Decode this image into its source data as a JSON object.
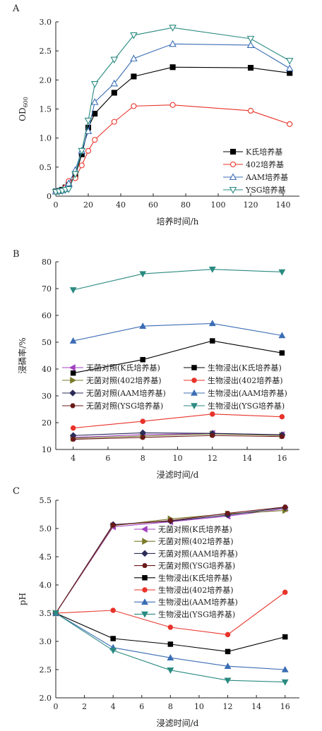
{
  "chart_data": [
    {
      "panel": "A",
      "type": "line",
      "xlabel": "培养时间/h",
      "ylabel": "OD",
      "ylabel_sub": "600",
      "xlim": [
        0,
        150
      ],
      "ylim": [
        0,
        3.0
      ],
      "xticks": [
        0,
        20,
        40,
        60,
        80,
        100,
        120,
        140
      ],
      "yticks": [
        0,
        0.5,
        1.0,
        1.5,
        2.0,
        2.5,
        3.0
      ],
      "ytick_labels": [
        "0",
        "0.5",
        "1.0",
        "1.5",
        "2.0",
        "2.5",
        "3.0"
      ],
      "legend_position": "lower-right",
      "series": [
        {
          "name": "K氏培养基",
          "color": "#000000",
          "marker": "square",
          "fill": true,
          "x": [
            0,
            2,
            4,
            6,
            8,
            12,
            16,
            20,
            24,
            36,
            48,
            72,
            120,
            144
          ],
          "y": [
            0.08,
            0.09,
            0.11,
            0.15,
            0.2,
            0.35,
            0.72,
            1.18,
            1.42,
            1.78,
            2.06,
            2.22,
            2.21,
            2.12
          ]
        },
        {
          "name": "402培养基",
          "color": "#e8332a",
          "marker": "circle",
          "fill": false,
          "x": [
            0,
            2,
            4,
            6,
            8,
            12,
            16,
            20,
            24,
            36,
            48,
            72,
            120,
            144
          ],
          "y": [
            0.07,
            0.08,
            0.1,
            0.15,
            0.26,
            0.31,
            0.53,
            0.78,
            0.97,
            1.28,
            1.55,
            1.57,
            1.47,
            1.24
          ]
        },
        {
          "name": "AAM培养基",
          "color": "#3b6db5",
          "marker": "triangle-up",
          "fill": false,
          "x": [
            0,
            2,
            4,
            6,
            8,
            12,
            16,
            20,
            24,
            36,
            48,
            72,
            120,
            144
          ],
          "y": [
            0.08,
            0.09,
            0.1,
            0.12,
            0.22,
            0.45,
            0.78,
            1.12,
            1.62,
            1.94,
            2.37,
            2.62,
            2.6,
            2.2
          ]
        },
        {
          "name": "YSG培养基",
          "color": "#2a8a80",
          "marker": "triangle-down",
          "fill": false,
          "x": [
            0,
            2,
            4,
            6,
            8,
            12,
            16,
            20,
            24,
            36,
            48,
            72,
            120,
            144
          ],
          "y": [
            0.07,
            0.08,
            0.09,
            0.11,
            0.12,
            0.38,
            0.78,
            1.3,
            1.93,
            2.35,
            2.77,
            2.9,
            2.71,
            2.33
          ]
        }
      ]
    },
    {
      "panel": "B",
      "type": "line",
      "xlabel": "浸滤时间/d",
      "ylabel": "浸磷率/%",
      "xlim": [
        3,
        17
      ],
      "ylim": [
        10,
        80
      ],
      "xticks": [
        4,
        6,
        8,
        10,
        12,
        14,
        16
      ],
      "yticks": [
        10,
        20,
        30,
        40,
        50,
        60,
        70,
        80
      ],
      "legend_position": "center",
      "series": [
        {
          "name": "生物浸出(K氏培养基)",
          "color": "#000000",
          "marker": "square",
          "x": [
            4,
            8,
            12,
            16
          ],
          "y": [
            38.5,
            43.5,
            50.5,
            46
          ]
        },
        {
          "name": "生物浸出(402培养基)",
          "color": "#e8332a",
          "marker": "circle",
          "x": [
            4,
            8,
            12,
            16
          ],
          "y": [
            18,
            20.5,
            23.2,
            22.2
          ]
        },
        {
          "name": "生物浸出(AAM培养基)",
          "color": "#3b6db5",
          "marker": "triangle-up",
          "x": [
            4,
            8,
            12,
            16
          ],
          "y": [
            50.5,
            56,
            57,
            52.5
          ]
        },
        {
          "name": "生物浸出(YSG培养基)",
          "color": "#2a8a80",
          "marker": "triangle-down",
          "x": [
            4,
            8,
            12,
            16
          ],
          "y": [
            69.5,
            75.5,
            77.2,
            76.2
          ]
        },
        {
          "name": "无菌对照(K氏培养基)",
          "color": "#a040c0",
          "marker": "triangle-left",
          "x": [
            4,
            8,
            12,
            16
          ],
          "y": [
            14.5,
            15.5,
            16,
            15.5
          ]
        },
        {
          "name": "无菌对照(402培养基)",
          "color": "#7a7a2a",
          "marker": "triangle-right",
          "x": [
            4,
            8,
            12,
            16
          ],
          "y": [
            14.2,
            15,
            15.8,
            15.2
          ]
        },
        {
          "name": "无菌对照(AAM培养基)",
          "color": "#2c2c5a",
          "marker": "diamond",
          "x": [
            4,
            8,
            12,
            16
          ],
          "y": [
            15.2,
            16.2,
            16,
            15.5
          ]
        },
        {
          "name": "无菌对照(YSG培养基)",
          "color": "#6a1818",
          "marker": "hexagon",
          "x": [
            4,
            8,
            12,
            16
          ],
          "y": [
            13.8,
            14.5,
            15.2,
            14.8
          ]
        }
      ]
    },
    {
      "panel": "C",
      "type": "line",
      "xlabel": "浸滤时间/d",
      "ylabel": "pH",
      "xlim": [
        0,
        17
      ],
      "ylim": [
        2.0,
        5.5
      ],
      "xticks": [
        0,
        2,
        4,
        6,
        8,
        10,
        12,
        14,
        16
      ],
      "yticks": [
        2.0,
        2.5,
        3.0,
        3.5,
        4.0,
        4.5,
        5.0,
        5.5
      ],
      "ytick_labels": [
        "2.0",
        "2.5",
        "3.0",
        "3.5",
        "4.0",
        "4.5",
        "5.0",
        "5.5"
      ],
      "legend_position": "center",
      "series": [
        {
          "name": "无菌对照(K氏培养基)",
          "color": "#a040c0",
          "marker": "triangle-left",
          "x": [
            0,
            4,
            8,
            12,
            16
          ],
          "y": [
            3.5,
            5.03,
            5.12,
            5.22,
            5.35
          ]
        },
        {
          "name": "无菌对照(402培养基)",
          "color": "#7a7a2a",
          "marker": "triangle-right",
          "x": [
            0,
            4,
            8,
            12,
            16
          ],
          "y": [
            3.5,
            5.05,
            5.17,
            5.26,
            5.32
          ]
        },
        {
          "name": "无菌对照(AAM培养基)",
          "color": "#2c2c5a",
          "marker": "diamond",
          "x": [
            0,
            4,
            8,
            12,
            16
          ],
          "y": [
            3.5,
            5.07,
            5.13,
            5.24,
            5.37
          ]
        },
        {
          "name": "无菌对照(YSG培养基)",
          "color": "#6a1818",
          "marker": "hexagon",
          "x": [
            0,
            4,
            8,
            12,
            16
          ],
          "y": [
            3.5,
            5.06,
            5.14,
            5.27,
            5.38
          ]
        },
        {
          "name": "生物浸出(K氏培养基)",
          "color": "#000000",
          "marker": "square",
          "x": [
            0,
            4,
            8,
            12,
            16
          ],
          "y": [
            3.5,
            3.05,
            2.95,
            2.82,
            3.08
          ]
        },
        {
          "name": "生物浸出(402培养基)",
          "color": "#e8332a",
          "marker": "circle",
          "x": [
            0,
            4,
            8,
            12,
            16
          ],
          "y": [
            3.5,
            3.55,
            3.25,
            3.12,
            3.87
          ]
        },
        {
          "name": "生物浸出(AAM培养基)",
          "color": "#3b6db5",
          "marker": "triangle-up",
          "x": [
            0,
            4,
            8,
            12,
            16
          ],
          "y": [
            3.5,
            2.89,
            2.71,
            2.56,
            2.5
          ]
        },
        {
          "name": "生物浸出(YSG培养基)",
          "color": "#2a8a80",
          "marker": "triangle-down",
          "x": [
            0,
            4,
            8,
            12,
            16
          ],
          "y": [
            3.5,
            2.84,
            2.49,
            2.31,
            2.28
          ]
        }
      ]
    }
  ]
}
